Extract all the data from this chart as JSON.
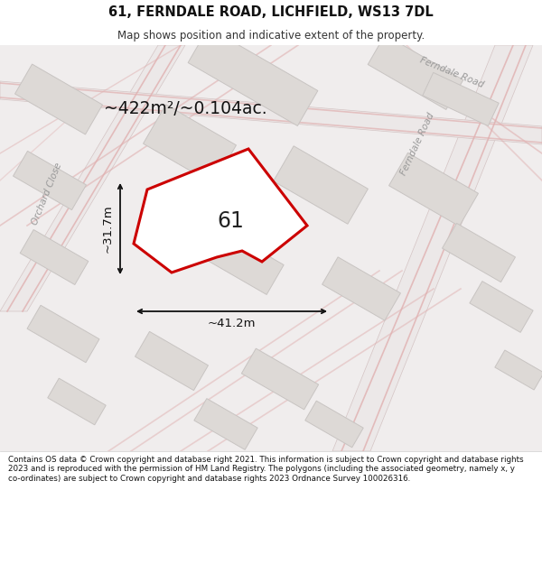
{
  "title": "61, FERNDALE ROAD, LICHFIELD, WS13 7DL",
  "subtitle": "Map shows position and indicative extent of the property.",
  "area_label": "~422m²/~0.104ac.",
  "number_label": "61",
  "dim_horizontal": "~41.2m",
  "dim_vertical": "~31.7m",
  "footer_text": "Contains OS data © Crown copyright and database right 2021. This information is subject to Crown copyright and database rights 2023 and is reproduced with the permission of HM Land Registry. The polygons (including the associated geometry, namely x, y co-ordinates) are subject to Crown copyright and database rights 2023 Ordnance Survey 100026316.",
  "bg_color": "#f0eeec",
  "road_fill": "#e8e2e2",
  "road_line": "#e0b0b0",
  "building_fill": "#ddd9d6",
  "building_edge": "#c8c4c2",
  "plot_fill": "#ffffff",
  "plot_edge": "#cc0000",
  "dim_color": "#111111",
  "street_color": "#999999",
  "text_color": "#111111",
  "header_bg": "#ffffff",
  "footer_bg": "#ffffff"
}
